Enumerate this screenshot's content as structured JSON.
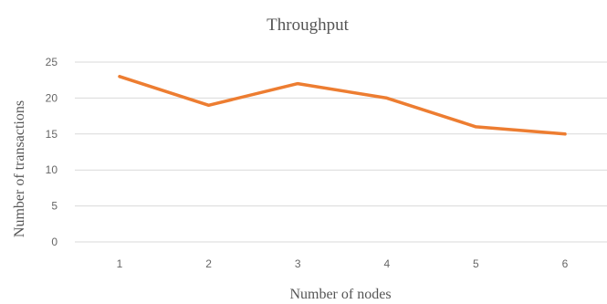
{
  "chart_data": {
    "type": "line",
    "title": "Throughput",
    "xlabel": "Number of nodes",
    "ylabel": "Number of transactions",
    "categories": [
      "1",
      "2",
      "3",
      "4",
      "5",
      "6"
    ],
    "series": [
      {
        "values": [
          23,
          19,
          22,
          20,
          16,
          15
        ]
      }
    ],
    "yticks": [
      "0",
      "5",
      "10",
      "15",
      "20",
      "25"
    ],
    "ylim": [
      0,
      25
    ],
    "grid": "horizontal",
    "legend": "none",
    "colors": {
      "line": "#ED7D31",
      "grid": "#D9D9D9",
      "text": "#595959"
    }
  }
}
